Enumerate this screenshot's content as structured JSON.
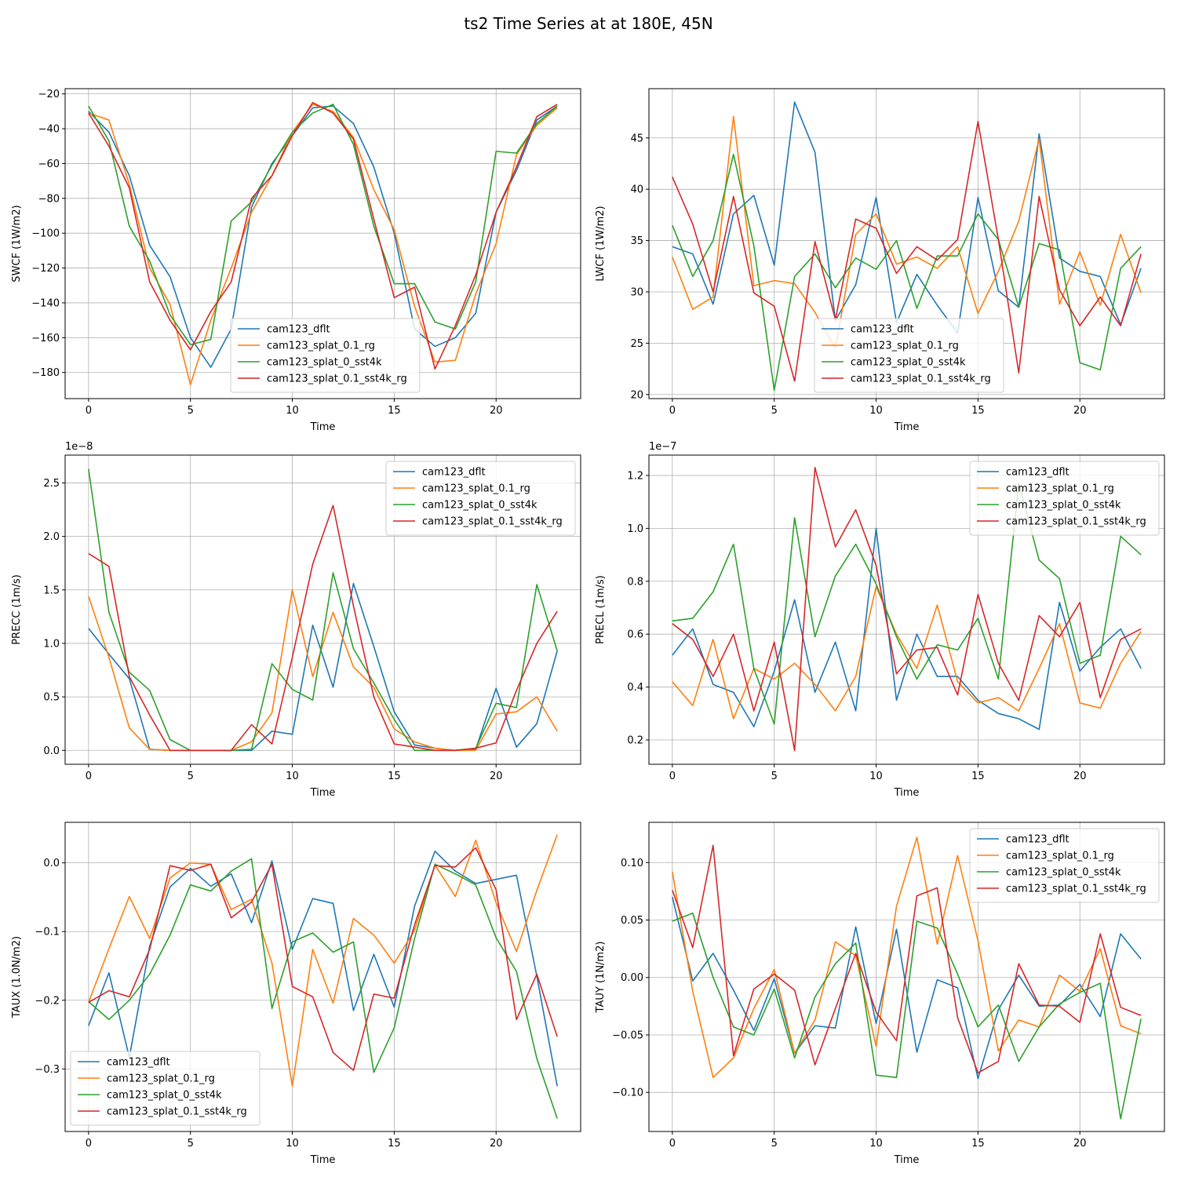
{
  "figure_title": "ts2 Time Series at at 180E, 45N",
  "legend_labels": [
    "cam123_dflt",
    "cam123_splat_0.1_rg",
    "cam123_splat_0_sst4k",
    "cam123_splat_0.1_sst4k_rg"
  ],
  "colors": [
    "#1f77b4",
    "#ff7f0e",
    "#2ca02c",
    "#d62728"
  ],
  "chart_data": [
    {
      "type": "line",
      "xlabel": "Time",
      "ylabel": "SWCF (1W/m2)",
      "offset_text": "",
      "xlim": [
        -1.15,
        24.15
      ],
      "ylim": [
        -195,
        -17
      ],
      "xticks": [
        0,
        5,
        10,
        15,
        20
      ],
      "yticks": [
        -20,
        -40,
        -60,
        -80,
        -100,
        -120,
        -140,
        -160,
        -180
      ],
      "ytick_labels": [
        "−20",
        "−40",
        "−60",
        "−80",
        "−100",
        "−120",
        "−140",
        "−160",
        "−180"
      ],
      "legend_loc": "lower center",
      "x": [
        0,
        1,
        2,
        3,
        4,
        5,
        6,
        7,
        8,
        9,
        10,
        11,
        12,
        13,
        14,
        15,
        16,
        17,
        18,
        19,
        20,
        21,
        22,
        23
      ],
      "series": [
        {
          "name": "cam123_dflt",
          "values": [
            -30,
            -42,
            -67,
            -107,
            -125,
            -160,
            -177,
            -155,
            -85,
            -60,
            -44,
            -28,
            -27,
            -37,
            -62,
            -100,
            -155,
            -165,
            -160,
            -146,
            -88,
            -64,
            -35,
            -27
          ]
        },
        {
          "name": "cam123_splat_0.1_rg",
          "values": [
            -31,
            -35,
            -72,
            -120,
            -141,
            -187,
            -150,
            -120,
            -88,
            -67,
            -42,
            -26,
            -30,
            -45,
            -75,
            -98,
            -142,
            -174,
            -173,
            -135,
            -106,
            -55,
            -38,
            -28
          ]
        },
        {
          "name": "cam123_splat_0_sst4k",
          "values": [
            -27,
            -47,
            -96,
            -116,
            -147,
            -164,
            -161,
            -93,
            -82,
            -61,
            -42,
            -31,
            -26,
            -49,
            -96,
            -129,
            -129,
            -151,
            -155,
            -128,
            -53,
            -54,
            -37,
            -27
          ]
        },
        {
          "name": "cam123_splat_0.1_sst4k_rg",
          "values": [
            -31,
            -50,
            -74,
            -128,
            -150,
            -167,
            -145,
            -128,
            -80,
            -67,
            -44,
            -25,
            -31,
            -46,
            -92,
            -137,
            -131,
            -178,
            -153,
            -124,
            -88,
            -62,
            -33,
            -26
          ]
        }
      ]
    },
    {
      "type": "line",
      "xlabel": "Time",
      "ylabel": "LWCF (1W/m2)",
      "offset_text": "",
      "xlim": [
        -1.15,
        24.15
      ],
      "ylim": [
        19.6,
        49.8
      ],
      "xticks": [
        0,
        5,
        10,
        15,
        20
      ],
      "yticks": [
        20,
        25,
        30,
        35,
        40,
        45
      ],
      "ytick_labels": [
        "20",
        "25",
        "30",
        "35",
        "40",
        "45"
      ],
      "legend_loc": "lower center",
      "x": [
        0,
        1,
        2,
        3,
        4,
        5,
        6,
        7,
        8,
        9,
        10,
        11,
        12,
        13,
        14,
        15,
        16,
        17,
        18,
        19,
        20,
        21,
        22,
        23
      ],
      "series": [
        {
          "name": "cam123_dflt",
          "values": [
            34.4,
            33.7,
            28.8,
            37.6,
            39.4,
            32.6,
            48.5,
            43.6,
            27.2,
            30.7,
            39.2,
            27.0,
            31.7,
            28.7,
            26.0,
            39.2,
            30.1,
            28.5,
            45.4,
            33.3,
            32.0,
            31.5,
            26.8,
            32.3
          ]
        },
        {
          "name": "cam123_splat_0.1_rg",
          "values": [
            33.4,
            28.3,
            29.5,
            47.1,
            30.6,
            31.1,
            30.8,
            28.0,
            24.5,
            35.6,
            37.6,
            32.7,
            33.4,
            32.3,
            34.4,
            27.9,
            32.0,
            36.9,
            44.9,
            28.8,
            33.9,
            28.7,
            35.6,
            29.9
          ]
        },
        {
          "name": "cam123_splat_0_sst4k",
          "values": [
            36.5,
            31.5,
            35.0,
            43.4,
            34.5,
            20.4,
            31.5,
            33.7,
            30.4,
            33.3,
            32.2,
            35.0,
            28.4,
            33.5,
            33.5,
            37.6,
            35.1,
            28.5,
            34.7,
            34.1,
            23.1,
            22.4,
            32.3,
            34.4
          ]
        },
        {
          "name": "cam123_splat_0.1_sst4k_rg",
          "values": [
            41.2,
            36.6,
            30.0,
            39.3,
            29.9,
            28.6,
            21.3,
            34.9,
            27.3,
            37.1,
            36.2,
            31.8,
            34.4,
            33.1,
            35.1,
            46.6,
            35.1,
            22.1,
            39.3,
            30.2,
            26.7,
            29.5,
            26.7,
            33.7
          ]
        }
      ]
    },
    {
      "type": "line",
      "xlabel": "Time",
      "ylabel": "PRECC (1m/s)",
      "offset_text": "1e−8",
      "xlim": [
        -1.15,
        24.15
      ],
      "ylim": [
        -0.13,
        2.76
      ],
      "xticks": [
        0,
        5,
        10,
        15,
        20
      ],
      "yticks": [
        0.0,
        0.5,
        1.0,
        1.5,
        2.0,
        2.5
      ],
      "ytick_labels": [
        "0.0",
        "0.5",
        "1.0",
        "1.5",
        "2.0",
        "2.5"
      ],
      "legend_loc": "upper right",
      "x": [
        0,
        1,
        2,
        3,
        4,
        5,
        6,
        7,
        8,
        9,
        10,
        11,
        12,
        13,
        14,
        15,
        16,
        17,
        18,
        19,
        20,
        21,
        22,
        23
      ],
      "series": [
        {
          "name": "cam123_dflt",
          "values": [
            1.14,
            0.9,
            0.67,
            0.01,
            0,
            0,
            0,
            0,
            0,
            0.18,
            0.15,
            1.17,
            0.59,
            1.56,
            0.97,
            0.36,
            0.05,
            0.02,
            0,
            0.01,
            0.58,
            0.03,
            0.25,
            0.93
          ]
        },
        {
          "name": "cam123_splat_0.1_rg",
          "values": [
            1.44,
            0.87,
            0.21,
            0.01,
            0,
            0,
            0,
            0,
            0.08,
            0.35,
            1.5,
            0.69,
            1.29,
            0.78,
            0.59,
            0.2,
            0.08,
            0.02,
            0,
            0,
            0.34,
            0.36,
            0.5,
            0.18
          ]
        },
        {
          "name": "cam123_splat_0_sst4k",
          "values": [
            2.63,
            1.29,
            0.73,
            0.56,
            0.1,
            0,
            0,
            0,
            0.01,
            0.81,
            0.57,
            0.47,
            1.66,
            0.95,
            0.63,
            0.29,
            0,
            0,
            0,
            0.02,
            0.44,
            0.4,
            1.55,
            0.93
          ]
        },
        {
          "name": "cam123_splat_0.1_sst4k_rg",
          "values": [
            1.84,
            1.72,
            0.69,
            0.33,
            0,
            0,
            0,
            0,
            0.24,
            0.06,
            0.87,
            1.74,
            2.29,
            1.35,
            0.5,
            0.06,
            0.03,
            0,
            0,
            0.02,
            0.07,
            0.56,
            1.0,
            1.3
          ]
        }
      ]
    },
    {
      "type": "line",
      "xlabel": "Time",
      "ylabel": "PRECL (1m/s)",
      "offset_text": "1e−7",
      "xlim": [
        -1.15,
        24.15
      ],
      "ylim": [
        0.108,
        1.277
      ],
      "xticks": [
        0,
        5,
        10,
        15,
        20
      ],
      "yticks": [
        0.2,
        0.4,
        0.6,
        0.8,
        1.0,
        1.2
      ],
      "ytick_labels": [
        "0.2",
        "0.4",
        "0.6",
        "0.8",
        "1.0",
        "1.2"
      ],
      "legend_loc": "upper right",
      "x": [
        0,
        1,
        2,
        3,
        4,
        5,
        6,
        7,
        8,
        9,
        10,
        11,
        12,
        13,
        14,
        15,
        16,
        17,
        18,
        19,
        20,
        21,
        22,
        23
      ],
      "series": [
        {
          "name": "cam123_dflt",
          "values": [
            0.52,
            0.62,
            0.41,
            0.38,
            0.25,
            0.46,
            0.73,
            0.38,
            0.57,
            0.31,
            1.0,
            0.35,
            0.6,
            0.44,
            0.44,
            0.35,
            0.3,
            0.28,
            0.24,
            0.72,
            0.46,
            0.55,
            0.62,
            0.47
          ]
        },
        {
          "name": "cam123_splat_0.1_rg",
          "values": [
            0.42,
            0.33,
            0.58,
            0.28,
            0.47,
            0.43,
            0.49,
            0.41,
            0.31,
            0.44,
            0.78,
            0.6,
            0.47,
            0.71,
            0.42,
            0.34,
            0.36,
            0.31,
            0.47,
            0.64,
            0.34,
            0.32,
            0.49,
            0.61
          ]
        },
        {
          "name": "cam123_splat_0_sst4k",
          "values": [
            0.65,
            0.66,
            0.76,
            0.94,
            0.47,
            0.26,
            1.04,
            0.59,
            0.82,
            0.94,
            0.79,
            0.59,
            0.43,
            0.56,
            0.54,
            0.66,
            0.43,
            1.17,
            0.88,
            0.81,
            0.49,
            0.52,
            0.97,
            0.9
          ]
        },
        {
          "name": "cam123_splat_0.1_sst4k_rg",
          "values": [
            0.64,
            0.58,
            0.44,
            0.6,
            0.31,
            0.57,
            0.16,
            1.23,
            0.93,
            1.07,
            0.86,
            0.45,
            0.54,
            0.55,
            0.37,
            0.75,
            0.49,
            0.35,
            0.67,
            0.59,
            0.72,
            0.36,
            0.58,
            0.62
          ]
        }
      ]
    },
    {
      "type": "line",
      "xlabel": "Time",
      "ylabel": "TAUX (1.0N/m2)",
      "offset_text": "",
      "xlim": [
        -1.15,
        24.15
      ],
      "ylim": [
        -0.391,
        0.059
      ],
      "xticks": [
        0,
        5,
        10,
        15,
        20
      ],
      "yticks": [
        0.0,
        -0.1,
        -0.2,
        -0.3
      ],
      "ytick_labels": [
        "0.0",
        "−0.1",
        "−0.2",
        "−0.3"
      ],
      "legend_loc": "lower left",
      "x": [
        0,
        1,
        2,
        3,
        4,
        5,
        6,
        7,
        8,
        9,
        10,
        11,
        12,
        13,
        14,
        15,
        16,
        17,
        18,
        19,
        20,
        21,
        22,
        23
      ],
      "series": [
        {
          "name": "cam123_dflt",
          "values": [
            -0.237,
            -0.16,
            -0.283,
            -0.121,
            -0.035,
            -0.008,
            -0.034,
            -0.016,
            -0.087,
            0.003,
            -0.126,
            -0.052,
            -0.059,
            -0.215,
            -0.133,
            -0.21,
            -0.063,
            0.017,
            -0.012,
            -0.03,
            -0.024,
            -0.018,
            -0.165,
            -0.325
          ]
        },
        {
          "name": "cam123_splat_0.1_rg",
          "values": [
            -0.203,
            -0.125,
            -0.049,
            -0.11,
            -0.022,
            0.0,
            -0.002,
            -0.068,
            -0.053,
            -0.146,
            -0.325,
            -0.126,
            -0.204,
            -0.081,
            -0.105,
            -0.146,
            -0.098,
            -0.003,
            -0.049,
            0.033,
            -0.058,
            -0.129,
            -0.04,
            0.041
          ]
        },
        {
          "name": "cam123_splat_0_sst4k",
          "values": [
            -0.202,
            -0.228,
            -0.2,
            -0.162,
            -0.105,
            -0.032,
            -0.041,
            -0.012,
            0.006,
            -0.212,
            -0.115,
            -0.102,
            -0.13,
            -0.115,
            -0.305,
            -0.24,
            -0.11,
            -0.002,
            -0.016,
            -0.032,
            -0.109,
            -0.158,
            -0.285,
            -0.372
          ]
        },
        {
          "name": "cam123_splat_0.1_sst4k_rg",
          "values": [
            -0.203,
            -0.186,
            -0.195,
            -0.126,
            -0.004,
            -0.011,
            -0.002,
            -0.08,
            -0.057,
            -0.002,
            -0.18,
            -0.195,
            -0.276,
            -0.302,
            -0.191,
            -0.197,
            -0.09,
            -0.004,
            -0.006,
            0.022,
            -0.039,
            -0.228,
            -0.162,
            -0.253
          ]
        }
      ]
    },
    {
      "type": "line",
      "xlabel": "Time",
      "ylabel": "TAUY (1N/m2)",
      "offset_text": "",
      "xlim": [
        -1.15,
        24.15
      ],
      "ylim": [
        -0.134,
        0.135
      ],
      "xticks": [
        0,
        5,
        10,
        15,
        20
      ],
      "yticks": [
        0.1,
        0.05,
        0.0,
        -0.05,
        -0.1
      ],
      "ytick_labels": [
        "0.10",
        "0.05",
        "0.00",
        "−0.05",
        "−0.10"
      ],
      "legend_loc": "upper right",
      "x": [
        0,
        1,
        2,
        3,
        4,
        5,
        6,
        7,
        8,
        9,
        10,
        11,
        12,
        13,
        14,
        15,
        16,
        17,
        18,
        19,
        20,
        21,
        22,
        23
      ],
      "series": [
        {
          "name": "cam123_dflt",
          "values": [
            0.07,
            -0.003,
            0.021,
            -0.011,
            -0.046,
            -0.001,
            -0.066,
            -0.042,
            -0.044,
            0.044,
            -0.04,
            0.042,
            -0.065,
            -0.002,
            -0.009,
            -0.088,
            -0.028,
            0.002,
            -0.025,
            -0.024,
            -0.006,
            -0.034,
            0.038,
            0.016
          ]
        },
        {
          "name": "cam123_splat_0.1_rg",
          "values": [
            0.092,
            -0.012,
            -0.087,
            -0.07,
            -0.027,
            0.007,
            -0.066,
            -0.037,
            0.031,
            0.019,
            -0.06,
            0.062,
            0.122,
            0.029,
            0.106,
            0.032,
            -0.064,
            -0.037,
            -0.043,
            0.002,
            -0.012,
            0.025,
            -0.042,
            -0.049
          ]
        },
        {
          "name": "cam123_splat_0_sst4k",
          "values": [
            0.049,
            0.056,
            0.0,
            -0.043,
            -0.05,
            -0.01,
            -0.07,
            -0.017,
            0.012,
            0.03,
            -0.085,
            -0.087,
            0.049,
            0.043,
            0.003,
            -0.043,
            -0.024,
            -0.073,
            -0.043,
            -0.023,
            -0.013,
            -0.005,
            -0.123,
            -0.036
          ]
        },
        {
          "name": "cam123_splat_0.1_sst4k_rg",
          "values": [
            0.076,
            0.026,
            0.115,
            -0.068,
            -0.01,
            0.003,
            -0.011,
            -0.076,
            -0.027,
            0.021,
            -0.03,
            -0.055,
            0.071,
            0.078,
            -0.035,
            -0.083,
            -0.073,
            0.012,
            -0.024,
            -0.025,
            -0.039,
            0.038,
            -0.026,
            -0.033
          ]
        }
      ]
    }
  ]
}
